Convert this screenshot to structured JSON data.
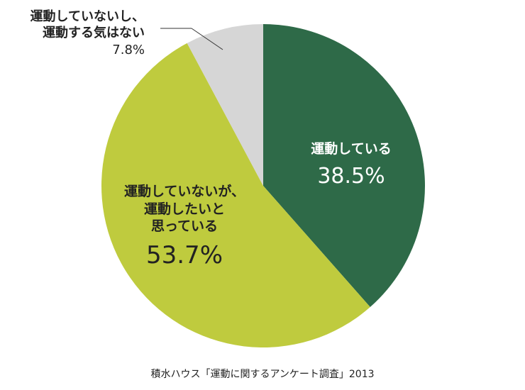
{
  "chart_data": {
    "type": "pie",
    "source": "積水ハウス「運動に関するアンケート調査」2013",
    "slices": [
      {
        "label_lines": [
          "運動している"
        ],
        "value": 38.5,
        "value_label": "38.5%",
        "color": "#2e6a48"
      },
      {
        "label_lines": [
          "運動していないが、",
          "運動したいと",
          "思っている"
        ],
        "value": 53.7,
        "value_label": "53.7%",
        "color": "#bfcb3e"
      },
      {
        "label_lines": [
          "運動していないし、",
          "運動する気はない"
        ],
        "value": 7.8,
        "value_label": "7.8%",
        "color": "#d6d6d6"
      }
    ]
  }
}
